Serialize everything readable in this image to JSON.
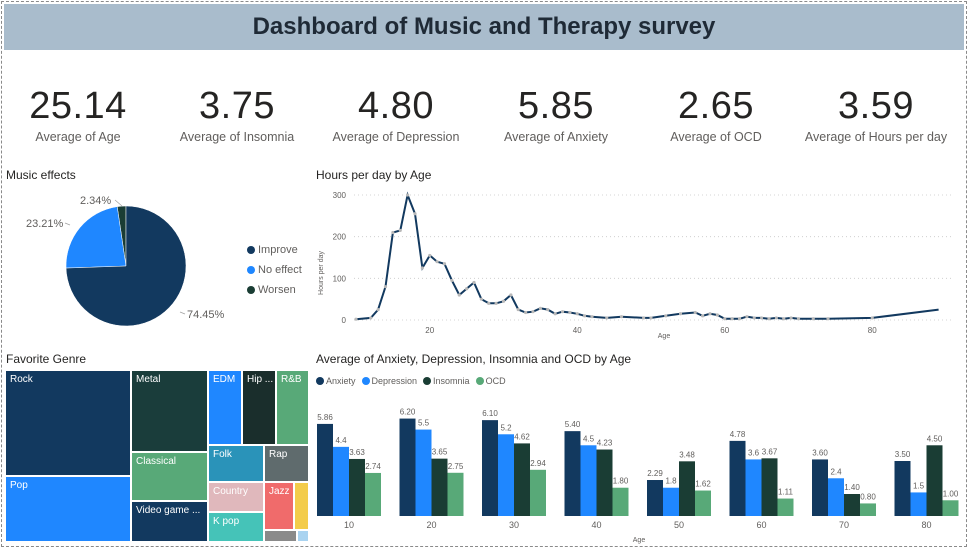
{
  "header": {
    "title": "Dashboard of Music and Therapy survey"
  },
  "kpis": [
    {
      "value": "25.14",
      "label": "Average of Age"
    },
    {
      "value": "3.75",
      "label": "Average of Insomnia"
    },
    {
      "value": "4.80",
      "label": "Average of Depression"
    },
    {
      "value": "5.85",
      "label": "Average of Anxiety"
    },
    {
      "value": "2.65",
      "label": "Average of OCD"
    },
    {
      "value": "3.59",
      "label": "Average of Hours per day"
    }
  ],
  "music_effects": {
    "title": "Music effects",
    "slices": [
      {
        "name": "Improve",
        "value": 74.45,
        "label": "74.45%",
        "color": "#12395f"
      },
      {
        "name": "No effect",
        "value": 23.21,
        "label": "23.21%",
        "color": "#1f87ff"
      },
      {
        "name": "Worsen",
        "value": 2.34,
        "label": "2.34%",
        "color": "#1a3d34"
      }
    ]
  },
  "hours_chart": {
    "title": "Hours per day by Age",
    "ylabel": "Hours per day",
    "xlabel": "Age",
    "line_color": "#12395f"
  },
  "genre": {
    "title": "Favorite Genre",
    "items": [
      {
        "name": "Rock",
        "color": "#12395f"
      },
      {
        "name": "Pop",
        "color": "#1f87ff"
      },
      {
        "name": "Metal",
        "color": "#1a3d3b"
      },
      {
        "name": "Classical",
        "color": "#58a978"
      },
      {
        "name": "Video game ...",
        "color": "#12395f"
      },
      {
        "name": "EDM",
        "color": "#1f87ff"
      },
      {
        "name": "Hip ...",
        "color": "#1a2e2c"
      },
      {
        "name": "R&B",
        "color": "#58a978"
      },
      {
        "name": "Folk",
        "color": "#2a93b9"
      },
      {
        "name": "Rap",
        "color": "#5f6b6d"
      },
      {
        "name": "Country",
        "color": "#e0b8bc"
      },
      {
        "name": "Jazz",
        "color": "#f06b6b"
      },
      {
        "name": "K pop",
        "color": "#45c3b8"
      },
      {
        "name": "",
        "color": "#f3cc4a"
      },
      {
        "name": "",
        "color": "#8a8a8a"
      },
      {
        "name": "",
        "color": "#a9d3f0"
      }
    ]
  },
  "bars_chart": {
    "title": "Average of Anxiety, Depression, Insomnia and OCD by Age",
    "xlabel": "Age"
  },
  "chart_data": [
    {
      "type": "pie",
      "title": "Music effects",
      "categories": [
        "Improve",
        "No effect",
        "Worsen"
      ],
      "values": [
        74.45,
        23.21,
        2.34
      ],
      "legend": "right"
    },
    {
      "type": "line",
      "title": "Hours per day by Age",
      "xlabel": "Age",
      "ylabel": "Hours per day",
      "xlim": [
        10,
        90
      ],
      "ylim": [
        0,
        300
      ],
      "x_ticks": [
        20,
        40,
        60,
        80
      ],
      "y_ticks": [
        0,
        100,
        200,
        300
      ],
      "x": [
        10,
        12,
        13,
        14,
        15,
        16,
        17,
        18,
        19,
        20,
        21,
        22,
        23,
        24,
        25,
        26,
        27,
        28,
        29,
        30,
        31,
        32,
        33,
        34,
        35,
        36,
        37,
        38,
        39,
        40,
        41,
        42,
        44,
        46,
        49,
        50,
        52,
        54,
        56,
        57,
        58,
        59,
        60,
        61,
        62,
        63,
        64,
        65,
        66,
        67,
        68,
        69,
        70,
        72,
        74,
        80,
        89
      ],
      "y": [
        2,
        5,
        25,
        80,
        210,
        215,
        300,
        255,
        125,
        155,
        140,
        135,
        95,
        60,
        75,
        90,
        50,
        40,
        40,
        45,
        60,
        25,
        18,
        20,
        28,
        25,
        15,
        20,
        18,
        15,
        10,
        8,
        5,
        8,
        5,
        5,
        10,
        15,
        18,
        10,
        15,
        12,
        3,
        3,
        3,
        8,
        5,
        5,
        3,
        5,
        3,
        5,
        3,
        3,
        3,
        5,
        25
      ]
    },
    {
      "type": "bar",
      "title": "Average of Anxiety, Depression, Insomnia and OCD by Age",
      "xlabel": "Age",
      "ylim": [
        0,
        7
      ],
      "legend": "top-left",
      "categories": [
        "10",
        "20",
        "30",
        "40",
        "50",
        "60",
        "70",
        "80"
      ],
      "series": [
        {
          "name": "Anxiety",
          "color": "#12395f",
          "values": [
            5.86,
            6.2,
            6.1,
            5.4,
            2.29,
            4.78,
            3.6,
            3.5
          ],
          "labels": [
            "5.86",
            "6.20",
            "6.10",
            "5.40",
            "2.29",
            "4.78",
            "3.60",
            "3.50"
          ]
        },
        {
          "name": "Depression",
          "color": "#1f87ff",
          "values": [
            4.4,
            5.5,
            5.2,
            4.5,
            1.8,
            3.6,
            2.4,
            1.5
          ],
          "labels": [
            "4.4",
            "5.5",
            "5.2",
            "4.5",
            "1.8",
            "3.6",
            "2.4",
            "1.5"
          ]
        },
        {
          "name": "Insomnia",
          "color": "#1a3d34",
          "values": [
            3.63,
            3.65,
            4.62,
            4.23,
            3.48,
            3.67,
            1.4,
            4.5
          ],
          "labels": [
            "3.63",
            "3.65",
            "4.62",
            "4.23",
            "3.48",
            "3.67",
            "1.40",
            "4.50"
          ]
        },
        {
          "name": "OCD",
          "color": "#58a978",
          "values": [
            2.74,
            2.75,
            2.94,
            1.8,
            1.62,
            1.11,
            0.8,
            1.0
          ],
          "labels": [
            "2.74",
            "2.75",
            "2.94",
            "1.80",
            "1.62",
            "1.11",
            "0.80",
            "1.00"
          ]
        }
      ]
    }
  ]
}
